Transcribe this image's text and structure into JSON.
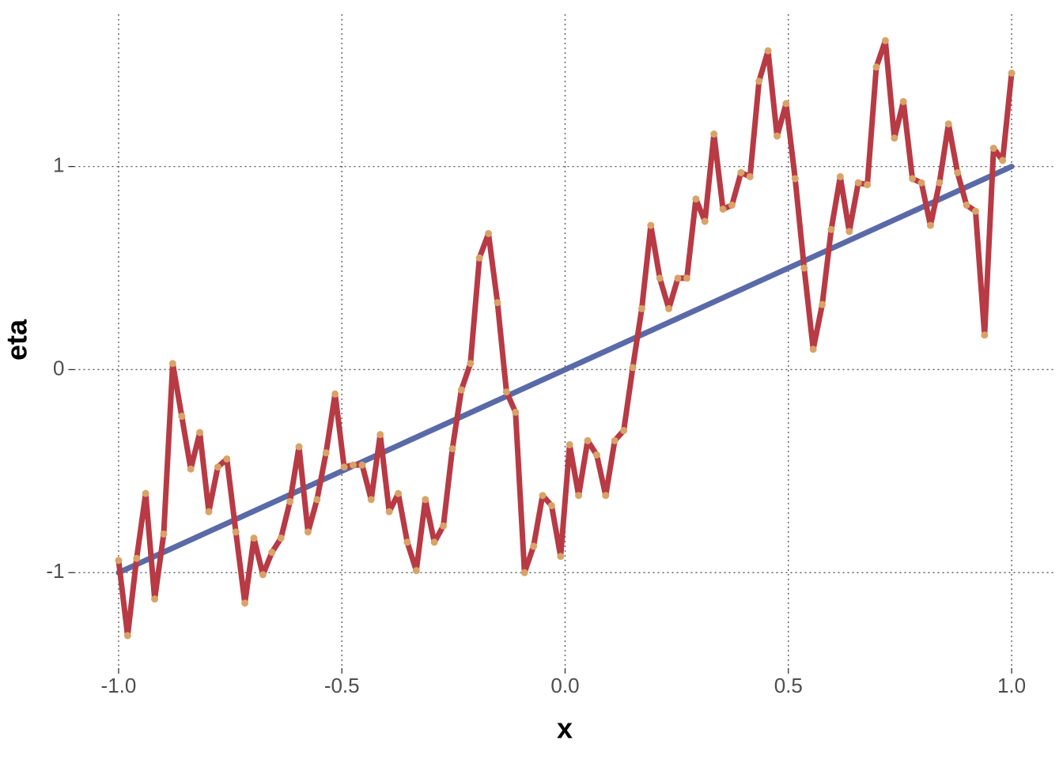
{
  "chart_data": {
    "type": "line",
    "x_label": "x",
    "y_label": "eta",
    "xlim": [
      -1.1,
      1.1
    ],
    "ylim": [
      -1.47,
      1.75
    ],
    "xticks": [
      {
        "value": -1,
        "label": "-1.0"
      },
      {
        "value": -0.5,
        "label": "-0.5"
      },
      {
        "value": 0,
        "label": "0.0"
      },
      {
        "value": 0.5,
        "label": "0.5"
      },
      {
        "value": 1,
        "label": "1.0"
      }
    ],
    "yticks": [
      -1,
      0,
      1
    ],
    "grid": true,
    "series": [
      {
        "color": "#5a6aa8",
        "x": [
          -1,
          1
        ],
        "values": [
          -1,
          1
        ]
      },
      {
        "color": "#b83a44",
        "marker_color": "#d9a368",
        "x": [
          -1,
          -0.9798,
          -0.9596,
          -0.9394,
          -0.9192,
          -0.899,
          -0.8788,
          -0.8586,
          -0.8384,
          -0.8182,
          -0.798,
          -0.7778,
          -0.7576,
          -0.7374,
          -0.7172,
          -0.697,
          -0.6768,
          -0.6566,
          -0.6364,
          -0.6162,
          -0.596,
          -0.5758,
          -0.5556,
          -0.5354,
          -0.5152,
          -0.4949,
          -0.4747,
          -0.4545,
          -0.4343,
          -0.4141,
          -0.3939,
          -0.3737,
          -0.3535,
          -0.3333,
          -0.3131,
          -0.2929,
          -0.2727,
          -0.2525,
          -0.2323,
          -0.2121,
          -0.1919,
          -0.1717,
          -0.1515,
          -0.1313,
          -0.1111,
          -0.0909,
          -0.0707,
          -0.0505,
          -0.0303,
          -0.0101,
          0.0101,
          0.0303,
          0.0505,
          0.0707,
          0.0909,
          0.1111,
          0.1313,
          0.1515,
          0.1717,
          0.1919,
          0.2121,
          0.2323,
          0.2525,
          0.2727,
          0.2929,
          0.3131,
          0.3333,
          0.3535,
          0.3737,
          0.3939,
          0.4141,
          0.4343,
          0.4545,
          0.4747,
          0.4949,
          0.5152,
          0.5354,
          0.5556,
          0.5758,
          0.596,
          0.6162,
          0.6364,
          0.6566,
          0.6768,
          0.697,
          0.7172,
          0.7374,
          0.7576,
          0.7778,
          0.798,
          0.8182,
          0.8384,
          0.8586,
          0.8788,
          0.899,
          0.9192,
          0.9394,
          0.9596,
          0.9798,
          1
        ],
        "values": [
          -0.94,
          -1.31,
          -0.93,
          -0.61,
          -1.13,
          -0.81,
          0.03,
          -0.23,
          -0.49,
          -0.31,
          -0.7,
          -0.48,
          -0.44,
          -0.8,
          -1.15,
          -0.83,
          -1.01,
          -0.9,
          -0.83,
          -0.65,
          -0.38,
          -0.8,
          -0.64,
          -0.41,
          -0.12,
          -0.48,
          -0.47,
          -0.47,
          -0.64,
          -0.32,
          -0.7,
          -0.61,
          -0.85,
          -0.99,
          -0.64,
          -0.85,
          -0.77,
          -0.39,
          -0.1,
          0.03,
          0.55,
          0.67,
          0.33,
          -0.11,
          -0.21,
          -1.0,
          -0.87,
          -0.62,
          -0.67,
          -0.92,
          -0.37,
          -0.62,
          -0.35,
          -0.42,
          -0.62,
          -0.35,
          -0.3,
          0.01,
          0.3,
          0.71,
          0.45,
          0.3,
          0.45,
          0.45,
          0.84,
          0.73,
          1.16,
          0.79,
          0.81,
          0.97,
          0.95,
          1.42,
          1.57,
          1.15,
          1.31,
          0.94,
          0.5,
          0.1,
          0.32,
          0.69,
          0.95,
          0.68,
          0.92,
          0.91,
          1.49,
          1.62,
          1.14,
          1.32,
          0.94,
          0.92,
          0.71,
          0.92,
          1.21,
          0.97,
          0.81,
          0.78,
          0.17,
          1.09,
          1.03,
          1.46
        ]
      }
    ]
  }
}
